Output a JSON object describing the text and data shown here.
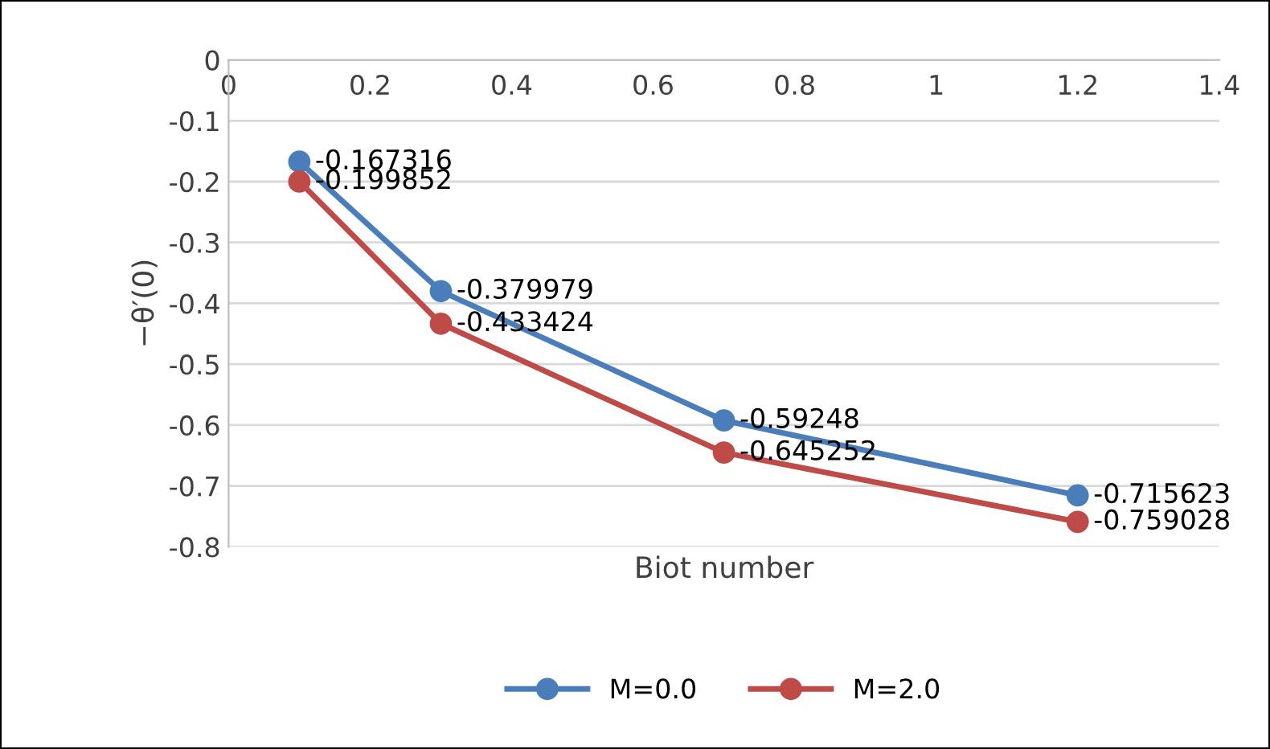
{
  "chart_data": {
    "type": "line",
    "xlabel": "Biot number",
    "ylabel": "−θ′(0)",
    "x": [
      0.1,
      0.3,
      0.7,
      1.2
    ],
    "series": [
      {
        "name": "M=0.0",
        "color": "#4a7ebb",
        "values": [
          -0.167316,
          -0.379979,
          -0.59248,
          -0.715623
        ]
      },
      {
        "name": "M=2.0",
        "color": "#be4b48",
        "values": [
          -0.199852,
          -0.433424,
          -0.645252,
          -0.759028
        ]
      }
    ],
    "xlim": [
      0,
      1.4
    ],
    "xticks": [
      0,
      0.2,
      0.4,
      0.6,
      0.8,
      1,
      1.2,
      1.4
    ],
    "ylim": [
      -0.8,
      0
    ],
    "yticks": [
      0,
      -0.1,
      -0.2,
      -0.3,
      -0.4,
      -0.5,
      -0.6,
      -0.7,
      -0.8
    ],
    "data_labels": true,
    "grid": "y",
    "legend": "bottom",
    "marker": "circle",
    "line_style": "solid"
  }
}
